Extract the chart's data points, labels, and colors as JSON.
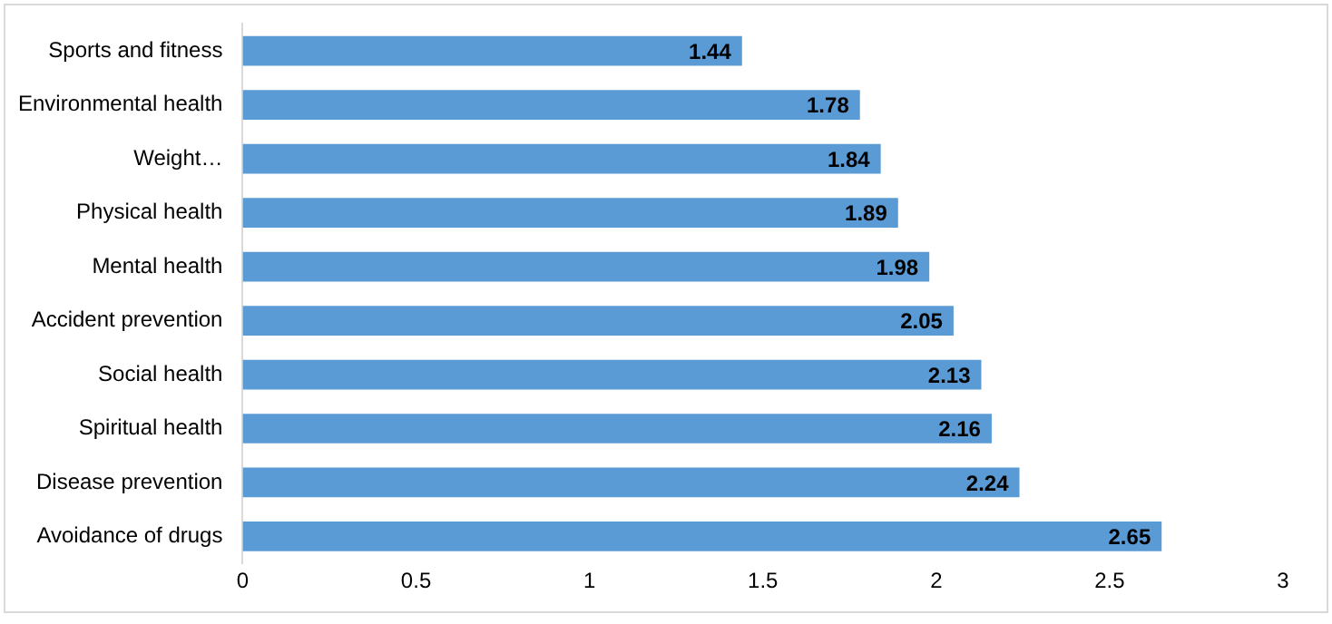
{
  "chart_data": {
    "type": "bar",
    "orientation": "horizontal",
    "categories": [
      "Sports and fitness",
      "Environmental health",
      "Weight…",
      "Physical health",
      "Mental health",
      "Accident prevention",
      "Social health",
      "Spiritual health",
      "Disease prevention",
      "Avoidance of drugs"
    ],
    "values": [
      1.44,
      1.78,
      1.84,
      1.89,
      1.98,
      2.05,
      2.13,
      2.16,
      2.24,
      2.65
    ],
    "color": "#5b9bd5",
    "xlim": [
      0,
      3
    ],
    "xticks": [
      0,
      0.5,
      1,
      1.5,
      2,
      2.5,
      3
    ],
    "data_labels": true,
    "grid": false,
    "legend": false
  }
}
